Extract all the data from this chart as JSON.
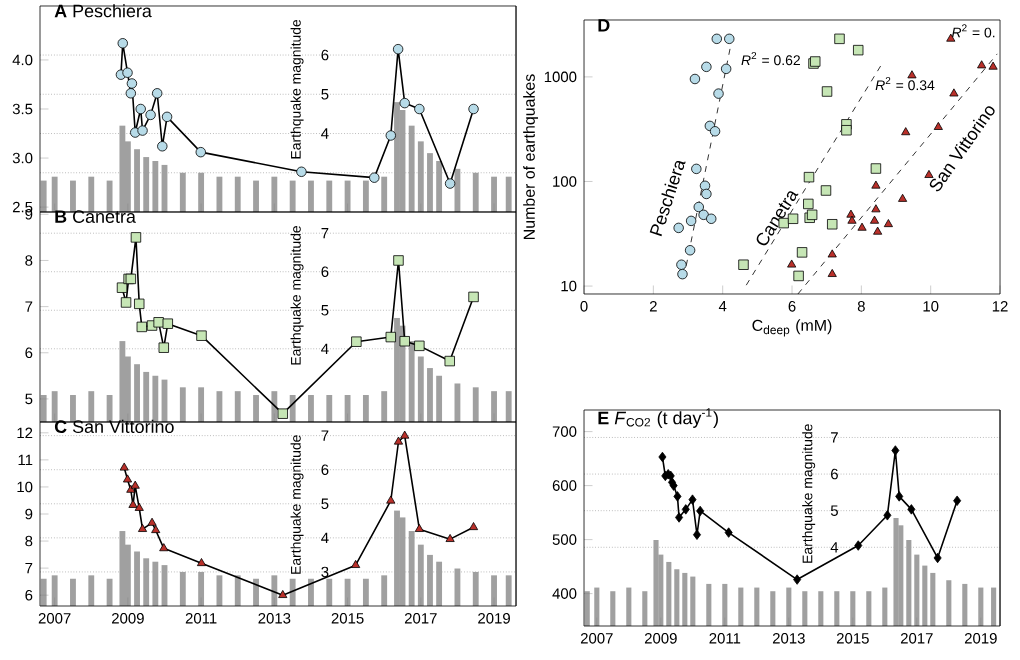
{
  "chart_data": [
    {
      "type": "line",
      "title": "**A** Peschiera",
      "y2label": "Earthquake magnitude",
      "xlim": [
        2006.6,
        2019.6
      ],
      "xticks": [
        2007,
        2009,
        2011,
        2013,
        2015,
        2017,
        2019
      ],
      "ylim": [
        2.45,
        4.55
      ],
      "yticks": [
        {
          "value": 2.5,
          "label": "2.5"
        },
        {
          "value": 3.0,
          "label": "3.0"
        },
        {
          "value": 3.5,
          "label": "3.5"
        },
        {
          "value": 4.0,
          "label": "4.0"
        }
      ],
      "y2lim": [
        2,
        7.25
      ],
      "y2ticks": [
        {
          "value": 3,
          "label": null
        },
        4,
        5,
        6
      ],
      "grid": "y",
      "tick_labels": "y",
      "series": [
        {
          "type": "bar",
          "axis": "y2",
          "color": "#a0a0a0",
          "x": [
            2006.7,
            2007.0,
            2007.5,
            2008.0,
            2008.5,
            2008.85,
            2009.0,
            2009.25,
            2009.5,
            2009.75,
            2010.0,
            2010.5,
            2011.0,
            2011.5,
            2012.0,
            2012.5,
            2013.0,
            2013.5,
            2014.0,
            2014.5,
            2015.0,
            2015.5,
            2016.0,
            2016.35,
            2016.5,
            2016.75,
            2017.0,
            2017.25,
            2017.5,
            2018.0,
            2018.5,
            2019.0,
            2019.4
          ],
          "values": [
            2.8,
            2.9,
            2.8,
            2.9,
            2.8,
            4.2,
            3.8,
            3.6,
            3.4,
            3.3,
            3.2,
            3.0,
            3.0,
            2.9,
            2.9,
            2.8,
            2.9,
            2.8,
            2.8,
            2.8,
            2.8,
            2.8,
            2.9,
            4.8,
            4.6,
            4.2,
            3.8,
            3.5,
            3.3,
            3.1,
            3.0,
            2.9,
            2.9
          ]
        },
        {
          "type": "line",
          "marker": "circle",
          "color": "#b7dbe8",
          "x": [
            2008.81,
            2008.86,
            2008.99,
            2009.08,
            2009.11,
            2009.2,
            2009.35,
            2009.4,
            2009.62,
            2009.8,
            2009.94,
            2010.07,
            2010.99,
            2013.74,
            2015.73,
            2016.18,
            2016.38,
            2016.56,
            2016.96,
            2017.8,
            2018.44
          ],
          "values": [
            3.85,
            4.17,
            3.87,
            3.66,
            3.76,
            3.26,
            3.5,
            3.28,
            3.44,
            3.66,
            3.12,
            3.42,
            3.06,
            2.86,
            2.8,
            3.23,
            4.11,
            3.56,
            3.5,
            2.74,
            3.5
          ]
        }
      ]
    },
    {
      "type": "line",
      "title": "**B** Canetra",
      "y2label": "Earthquake magnitude",
      "xlim": [
        2006.6,
        2019.6
      ],
      "xticks": [
        2007,
        2009,
        2011,
        2013,
        2015,
        2017,
        2019
      ],
      "ylim": [
        4.5,
        9.05
      ],
      "yticks": [
        5,
        6,
        7,
        8,
        9
      ],
      "y2lim": [
        2.1,
        7.55
      ],
      "y2ticks": [
        4,
        5,
        6,
        7
      ],
      "grid": "y",
      "tick_labels": "y",
      "series": [
        {
          "type": "bar",
          "axis": "y2",
          "color": "#a0a0a0",
          "x": [
            2006.7,
            2007.0,
            2007.5,
            2008.0,
            2008.5,
            2008.85,
            2009.0,
            2009.25,
            2009.5,
            2009.75,
            2010.0,
            2010.5,
            2011.0,
            2011.5,
            2012.0,
            2012.5,
            2013.0,
            2013.5,
            2014.0,
            2014.5,
            2015.0,
            2015.5,
            2016.0,
            2016.35,
            2016.5,
            2016.75,
            2017.0,
            2017.25,
            2017.5,
            2018.0,
            2018.5,
            2019.0,
            2019.4
          ],
          "values": [
            2.8,
            2.9,
            2.8,
            2.9,
            2.8,
            4.2,
            3.8,
            3.6,
            3.4,
            3.3,
            3.2,
            3.0,
            3.0,
            2.9,
            2.9,
            2.8,
            2.9,
            2.8,
            2.8,
            2.8,
            2.8,
            2.8,
            2.9,
            4.8,
            4.6,
            4.2,
            3.8,
            3.5,
            3.3,
            3.1,
            3.0,
            2.9,
            2.9
          ]
        },
        {
          "type": "line",
          "marker": "square",
          "color": "#c6e6b5",
          "x": [
            2008.84,
            2008.95,
            2009.02,
            2009.08,
            2009.22,
            2009.31,
            2009.38,
            2009.66,
            2009.84,
            2009.98,
            2010.09,
            2011.01,
            2013.23,
            2015.24,
            2016.18,
            2016.39,
            2016.56,
            2016.96,
            2017.79,
            2018.44
          ],
          "values": [
            7.41,
            7.09,
            7.6,
            7.6,
            8.5,
            7.06,
            6.56,
            6.59,
            6.66,
            6.11,
            6.63,
            6.37,
            4.68,
            6.24,
            6.34,
            8.0,
            6.25,
            6.15,
            5.82,
            7.21
          ]
        }
      ]
    },
    {
      "type": "line",
      "title": "**C** San Vittorino",
      "y2label": "Earthquake magnitude",
      "xlim": [
        2006.6,
        2019.6
      ],
      "xticks": [
        2007,
        2009,
        2011,
        2013,
        2015,
        2017,
        2019
      ],
      "ylim": [
        5.6,
        12.4
      ],
      "yticks": [
        6,
        7,
        8,
        9,
        10,
        11,
        12
      ],
      "y2lim": [
        2,
        7.4
      ],
      "y2ticks": [
        3,
        4,
        5,
        6,
        7
      ],
      "grid": "y",
      "series": [
        {
          "type": "bar",
          "axis": "y2",
          "color": "#a0a0a0",
          "x": [
            2006.7,
            2007.0,
            2007.5,
            2008.0,
            2008.5,
            2008.85,
            2009.0,
            2009.25,
            2009.5,
            2009.75,
            2010.0,
            2010.5,
            2011.0,
            2011.5,
            2012.0,
            2012.5,
            2013.0,
            2013.5,
            2014.0,
            2014.5,
            2015.0,
            2015.5,
            2016.0,
            2016.35,
            2016.5,
            2016.75,
            2017.0,
            2017.25,
            2017.5,
            2018.0,
            2018.5,
            2019.0,
            2019.4
          ],
          "values": [
            2.8,
            2.9,
            2.8,
            2.9,
            2.8,
            4.2,
            3.8,
            3.6,
            3.4,
            3.3,
            3.2,
            3.0,
            3.0,
            2.9,
            2.9,
            2.8,
            2.9,
            2.8,
            2.8,
            2.8,
            2.8,
            2.8,
            2.9,
            4.8,
            4.6,
            4.2,
            3.8,
            3.5,
            3.3,
            3.1,
            3.0,
            2.9,
            2.9
          ]
        },
        {
          "type": "line",
          "marker": "triangle",
          "color": "#b9302a",
          "x": [
            2008.9,
            2008.99,
            2009.08,
            2009.14,
            2009.2,
            2009.31,
            2009.4,
            2009.66,
            2009.76,
            2009.98,
            2011.01,
            2013.23,
            2015.22,
            2016.18,
            2016.39,
            2016.56,
            2016.96,
            2017.8,
            2018.44
          ],
          "values": [
            10.71,
            10.27,
            9.89,
            9.33,
            10.04,
            9.22,
            8.44,
            8.67,
            8.4,
            7.73,
            7.18,
            6.0,
            7.11,
            9.49,
            11.67,
            11.89,
            8.44,
            8.07,
            8.51
          ]
        }
      ]
    },
    {
      "type": "scatter",
      "title": "**D**",
      "xlabel": "C$_{deep}$ (mM)",
      "ylabel": "Number of earthquakes",
      "log": "y",
      "xlim": [
        0,
        12
      ],
      "xticks": [
        0,
        2,
        4,
        6,
        8,
        10,
        12
      ],
      "ylim": [
        8.4,
        3500
      ],
      "yticks": [
        10,
        100,
        1000
      ],
      "annotations": [
        {
          "text": "*R*$^{2}$ = 0.62",
          "x": 4.46,
          "y": 1820
        },
        {
          "text": "*R*$^{2}$ = 0.34",
          "x": 8.33,
          "y": 1050
        },
        "*R*$^{2}$ = 0."
      ],
      "series": [
        {
          "name": "Peschiera",
          "marker": "circle",
          "color": "#b7dbe8",
          "x": [
            3.83,
            4.19,
            3.53,
            4.1,
            3.2,
            3.88,
            3.63,
            3.78,
            3.24,
            3.49,
            3.53,
            3.31,
            3.45,
            3.67,
            2.73,
            3.09,
            3.06,
            2.81,
            2.84
          ],
          "values": [
            2312,
            2312,
            1248,
            1194,
            955,
            692,
            340,
            302,
            132,
            91,
            76,
            57,
            48,
            44,
            36,
            42,
            22,
            16,
            13
          ]
        },
        {
          "type": "line",
          "marker": "none",
          "line_style": "dashed",
          "color": "#000000",
          "x": [
            2.88,
            4.28
          ],
          "values": [
            12.1,
            2400
          ]
        },
        {
          "name": "Canetra",
          "marker": "square",
          "color": "#c6e6b5",
          "x": [
            7.37,
            7.91,
            6.62,
            6.67,
            7.01,
            7.57,
            7.57,
            8.42,
            6.49,
            6.98,
            6.47,
            6.51,
            6.58,
            5.76,
            6.03,
            7.16,
            6.29,
            4.6,
            6.19
          ],
          "values": [
            2312,
            1803,
            1343,
            1403,
            725,
            352,
            309,
            133,
            110,
            82,
            61,
            45,
            48,
            40,
            44,
            39,
            21,
            16,
            12.5
          ]
        },
        {
          "type": "line",
          "marker": "none",
          "line_style": "dashed",
          "color": "#000000",
          "x": [
            4.68,
            8.6
          ],
          "values": [
            10.2,
            1343
          ]
        },
        {
          "name": "San Vittorino",
          "marker": "triangle",
          "color": "#b9302a",
          "x": [
            10.58,
            9.46,
            11.47,
            11.8,
            10.67,
            10.22,
            9.28,
            9.95,
            8.42,
            9.19,
            7.7,
            7.73,
            8.42,
            8.38,
            8.78,
            8.02,
            8.47,
            7.16,
            5.99,
            7.16
          ],
          "values": [
            2312,
            1031,
            1285,
            1248,
            692,
            331,
            295,
            115,
            91,
            68,
            48,
            42,
            54,
            42,
            39,
            36,
            33,
            20,
            16,
            13
          ]
        },
        {
          "type": "line",
          "marker": "none",
          "line_style": "dashed",
          "color": "#000000",
          "x": [
            6.17,
            11.92
          ],
          "values": [
            8.4,
            1660
          ]
        }
      ]
    },
    {
      "type": "line",
      "title": "**E** *F*$_{CO2}$ (t day$^{-1}$)",
      "y2label": "Earthquake magnitude",
      "xlim": [
        2006.6,
        2019.6
      ],
      "xticks": [
        2007,
        2009,
        2011,
        2013,
        2015,
        2017,
        2019
      ],
      "ylim": [
        340,
        740
      ],
      "yticks": [
        400,
        500,
        600,
        700
      ],
      "y2lim": [
        1.85,
        7.75
      ],
      "y2ticks": [
        4,
        5,
        6,
        7
      ],
      "grid": "y",
      "series": [
        {
          "type": "bar",
          "axis": "y2",
          "color": "#a0a0a0",
          "x": [
            2006.7,
            2007.0,
            2007.5,
            2008.0,
            2008.5,
            2008.85,
            2009.0,
            2009.25,
            2009.5,
            2009.75,
            2010.0,
            2010.5,
            2011.0,
            2011.5,
            2012.0,
            2012.5,
            2013.0,
            2013.5,
            2014.0,
            2014.5,
            2015.0,
            2015.5,
            2016.0,
            2016.35,
            2016.5,
            2016.75,
            2017.0,
            2017.25,
            2017.5,
            2018.0,
            2018.5,
            2019.0,
            2019.4
          ],
          "values": [
            2.8,
            2.9,
            2.8,
            2.9,
            2.8,
            4.2,
            3.8,
            3.6,
            3.4,
            3.3,
            3.2,
            3.0,
            3.0,
            2.9,
            2.9,
            2.8,
            2.9,
            2.8,
            2.8,
            2.8,
            2.8,
            2.8,
            2.9,
            4.8,
            4.6,
            4.2,
            3.8,
            3.5,
            3.3,
            3.1,
            3.0,
            2.9,
            2.9
          ]
        },
        {
          "type": "line",
          "marker": "diamond",
          "color": "#000000",
          "x": [
            2009.05,
            2009.14,
            2009.23,
            2009.31,
            2009.35,
            2009.4,
            2009.52,
            2009.57,
            2009.78,
            2009.99,
            2010.13,
            2010.23,
            2011.12,
            2013.26,
            2015.17,
            2016.08,
            2016.33,
            2016.45,
            2016.83,
            2017.65,
            2018.26
          ],
          "values": [
            653,
            618,
            621,
            618,
            606,
            600,
            580,
            541,
            556,
            574,
            509,
            553,
            513,
            426,
            489,
            545,
            665,
            580,
            556,
            466,
            572
          ]
        }
      ]
    }
  ]
}
